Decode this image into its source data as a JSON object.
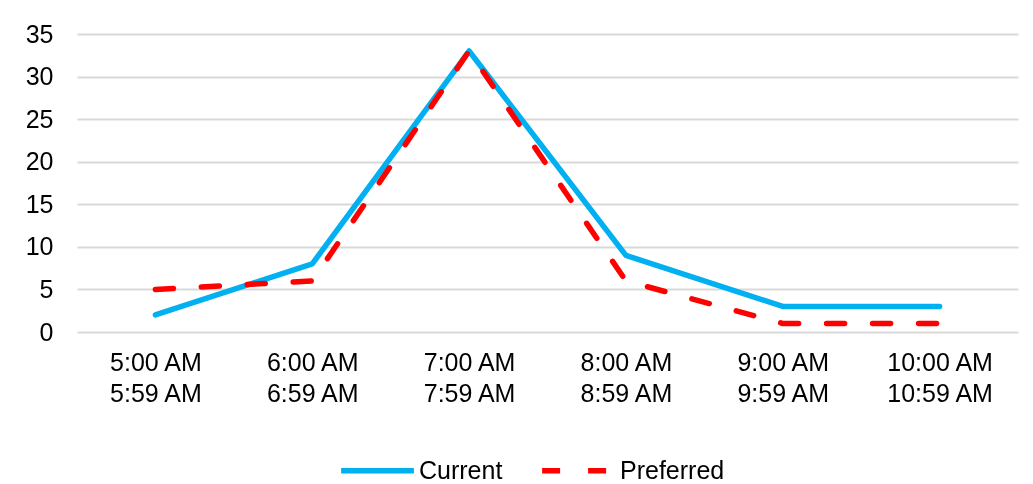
{
  "chart_data": {
    "type": "line",
    "categories": [
      "5:00 AM\n5:59 AM",
      "6:00 AM\n6:59 AM",
      "7:00 AM\n7:59 AM",
      "8:00 AM\n8:59 AM",
      "9:00 AM\n9:59 AM",
      "10:00 AM\n10:59 AM"
    ],
    "series": [
      {
        "name": "Current",
        "color": "#00b0f0",
        "line_style": "solid",
        "values": [
          2,
          8,
          33,
          9,
          3,
          3
        ]
      },
      {
        "name": "Preferred",
        "color": "#ff0000",
        "line_style": "dashed",
        "values": [
          5,
          6,
          33,
          6,
          1,
          1
        ]
      }
    ],
    "ylim": [
      0,
      35
    ],
    "yticks": [
      0,
      5,
      10,
      15,
      20,
      25,
      30,
      35
    ],
    "grid": "y",
    "legend": "bottom"
  }
}
